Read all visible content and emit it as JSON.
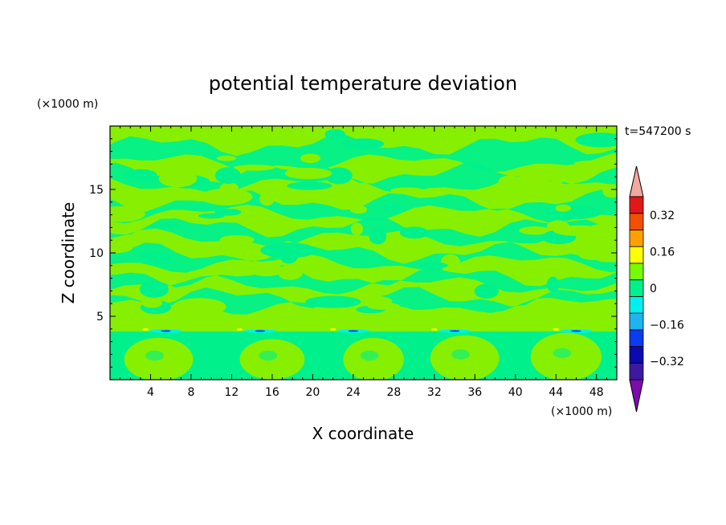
{
  "chart_data": {
    "type": "heatmap",
    "title": "potential temperature deviation",
    "xlabel": "X coordinate",
    "ylabel": "Z coordinate",
    "x_unit": "(×1000 m)",
    "y_unit": "(×1000 m)",
    "time_label": "t=547200 s",
    "xlim": [
      0,
      50
    ],
    "ylim": [
      0,
      20
    ],
    "x_ticks": [
      4,
      8,
      12,
      16,
      20,
      24,
      28,
      32,
      36,
      40,
      44,
      48
    ],
    "y_ticks": [
      5,
      10,
      15
    ],
    "grid": false,
    "colorbar": {
      "position": "right",
      "levels": [
        -0.4,
        -0.32,
        -0.24,
        -0.16,
        -0.08,
        0,
        0.08,
        0.16,
        0.24,
        0.32,
        0.4
      ],
      "colors": [
        "#7a0dab",
        "#3c1aa0",
        "#0a0ab0",
        "#0a3cf0",
        "#1eb4f0",
        "#00f0f0",
        "#00f08c",
        "#78fa00",
        "#ffff00",
        "#ffa000",
        "#f05000",
        "#e01818",
        "#f4a8a0"
      ],
      "tick_labels": [
        {
          "value": 0.32,
          "label": "0.32"
        },
        {
          "value": 0.16,
          "label": "0.16"
        },
        {
          "value": 0,
          "label": "0"
        },
        {
          "value": -0.16,
          "label": "−0.16"
        },
        {
          "value": -0.32,
          "label": "−0.32"
        }
      ]
    },
    "field_colors": {
      "background": "#86f000",
      "neutral": "#00f08c",
      "cold": "#00f0f0",
      "cold_strong": "#0a3cf0",
      "warm": "#ffff00"
    },
    "warm_bubbles": [
      {
        "x": 4.8,
        "z": 1.6,
        "rx": 3.4,
        "rz": 1.7
      },
      {
        "x": 16.0,
        "z": 1.6,
        "rx": 3.2,
        "rz": 1.6
      },
      {
        "x": 26.0,
        "z": 1.6,
        "rx": 3.0,
        "rz": 1.7
      },
      {
        "x": 35.0,
        "z": 1.7,
        "rx": 3.4,
        "rz": 1.8
      },
      {
        "x": 45.0,
        "z": 1.8,
        "rx": 3.5,
        "rz": 1.9
      }
    ],
    "inversion_height": 3.9,
    "cold_pockets_x": [
      5.5,
      14.8,
      24.0,
      34.0,
      46.0
    ]
  }
}
